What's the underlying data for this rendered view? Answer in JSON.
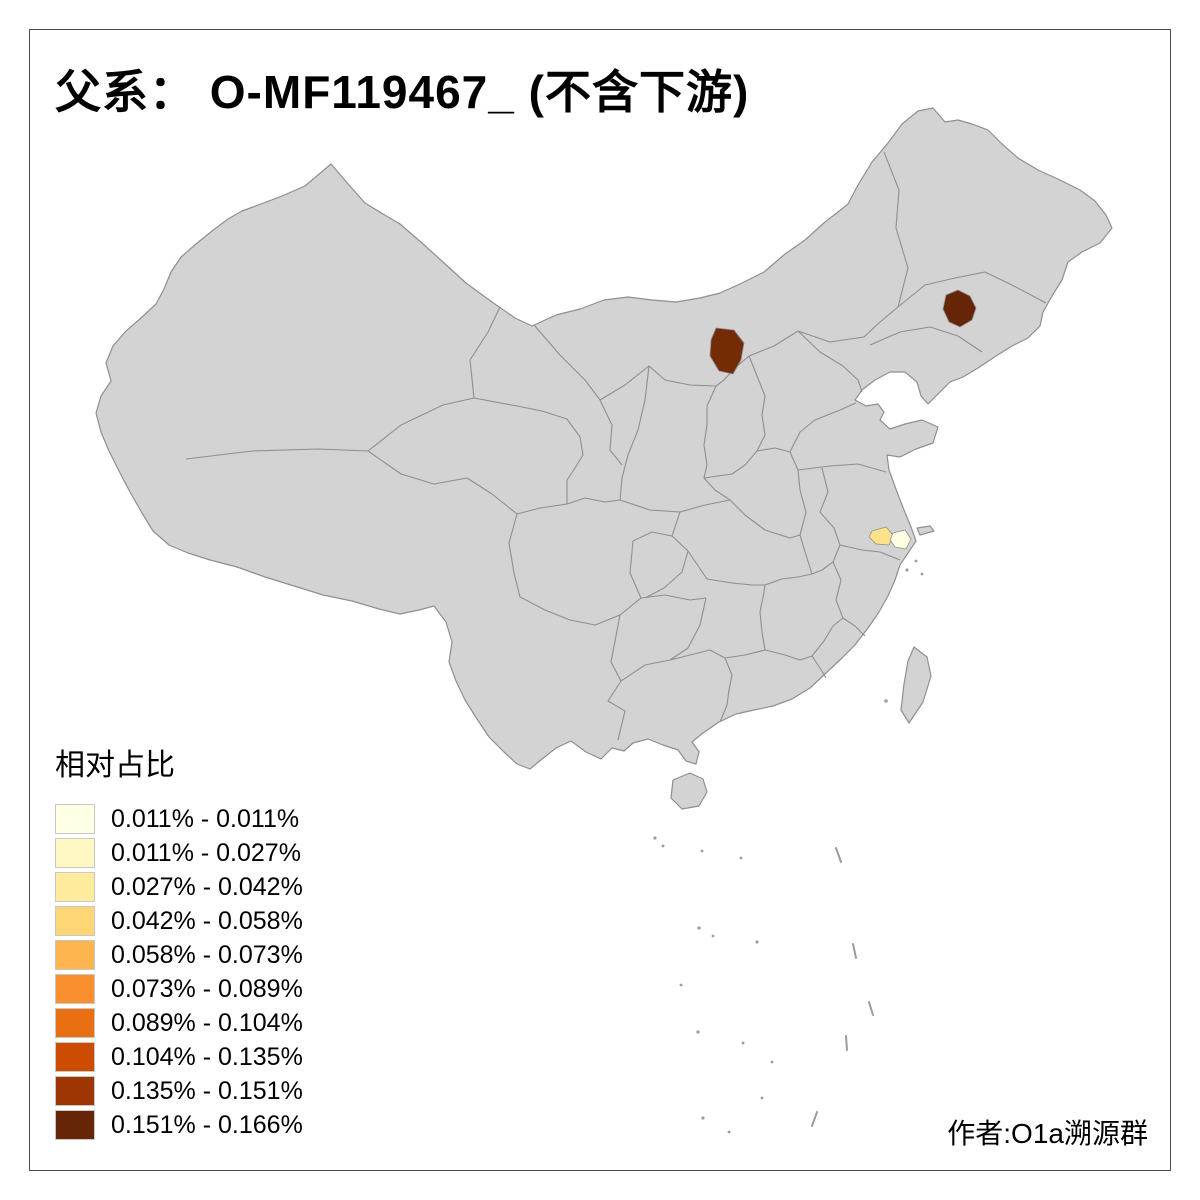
{
  "title": "父系： O-MF119467_ (不含下游)",
  "credit": "作者:O1a溯源群",
  "legend": {
    "title": "相对占比",
    "items": [
      {
        "label": "0.011% - 0.011%",
        "color": "#FFFFE5"
      },
      {
        "label": "0.011% - 0.027%",
        "color": "#FFF8C2"
      },
      {
        "label": "0.027% - 0.042%",
        "color": "#FEEB9E"
      },
      {
        "label": "0.042% - 0.058%",
        "color": "#FED676"
      },
      {
        "label": "0.058% - 0.073%",
        "color": "#FEB54F"
      },
      {
        "label": "0.073% - 0.089%",
        "color": "#F98F2E"
      },
      {
        "label": "0.089% - 0.104%",
        "color": "#E96F13"
      },
      {
        "label": "0.104% - 0.135%",
        "color": "#CC4C02"
      },
      {
        "label": "0.135% - 0.151%",
        "color": "#9E3603"
      },
      {
        "label": "0.151% - 0.166%",
        "color": "#662506"
      }
    ]
  },
  "map": {
    "base_fill": "#D3D3D3",
    "border_color": "#8F8F8F",
    "highlighted_regions": [
      {
        "id": "northeast-region",
        "color": "#662506"
      },
      {
        "id": "inner-mongolia-region",
        "color": "#742C06"
      },
      {
        "id": "jiangsu-region-a",
        "color": "#FCE38A"
      },
      {
        "id": "jiangsu-region-b",
        "color": "#FFFFE2"
      }
    ]
  }
}
